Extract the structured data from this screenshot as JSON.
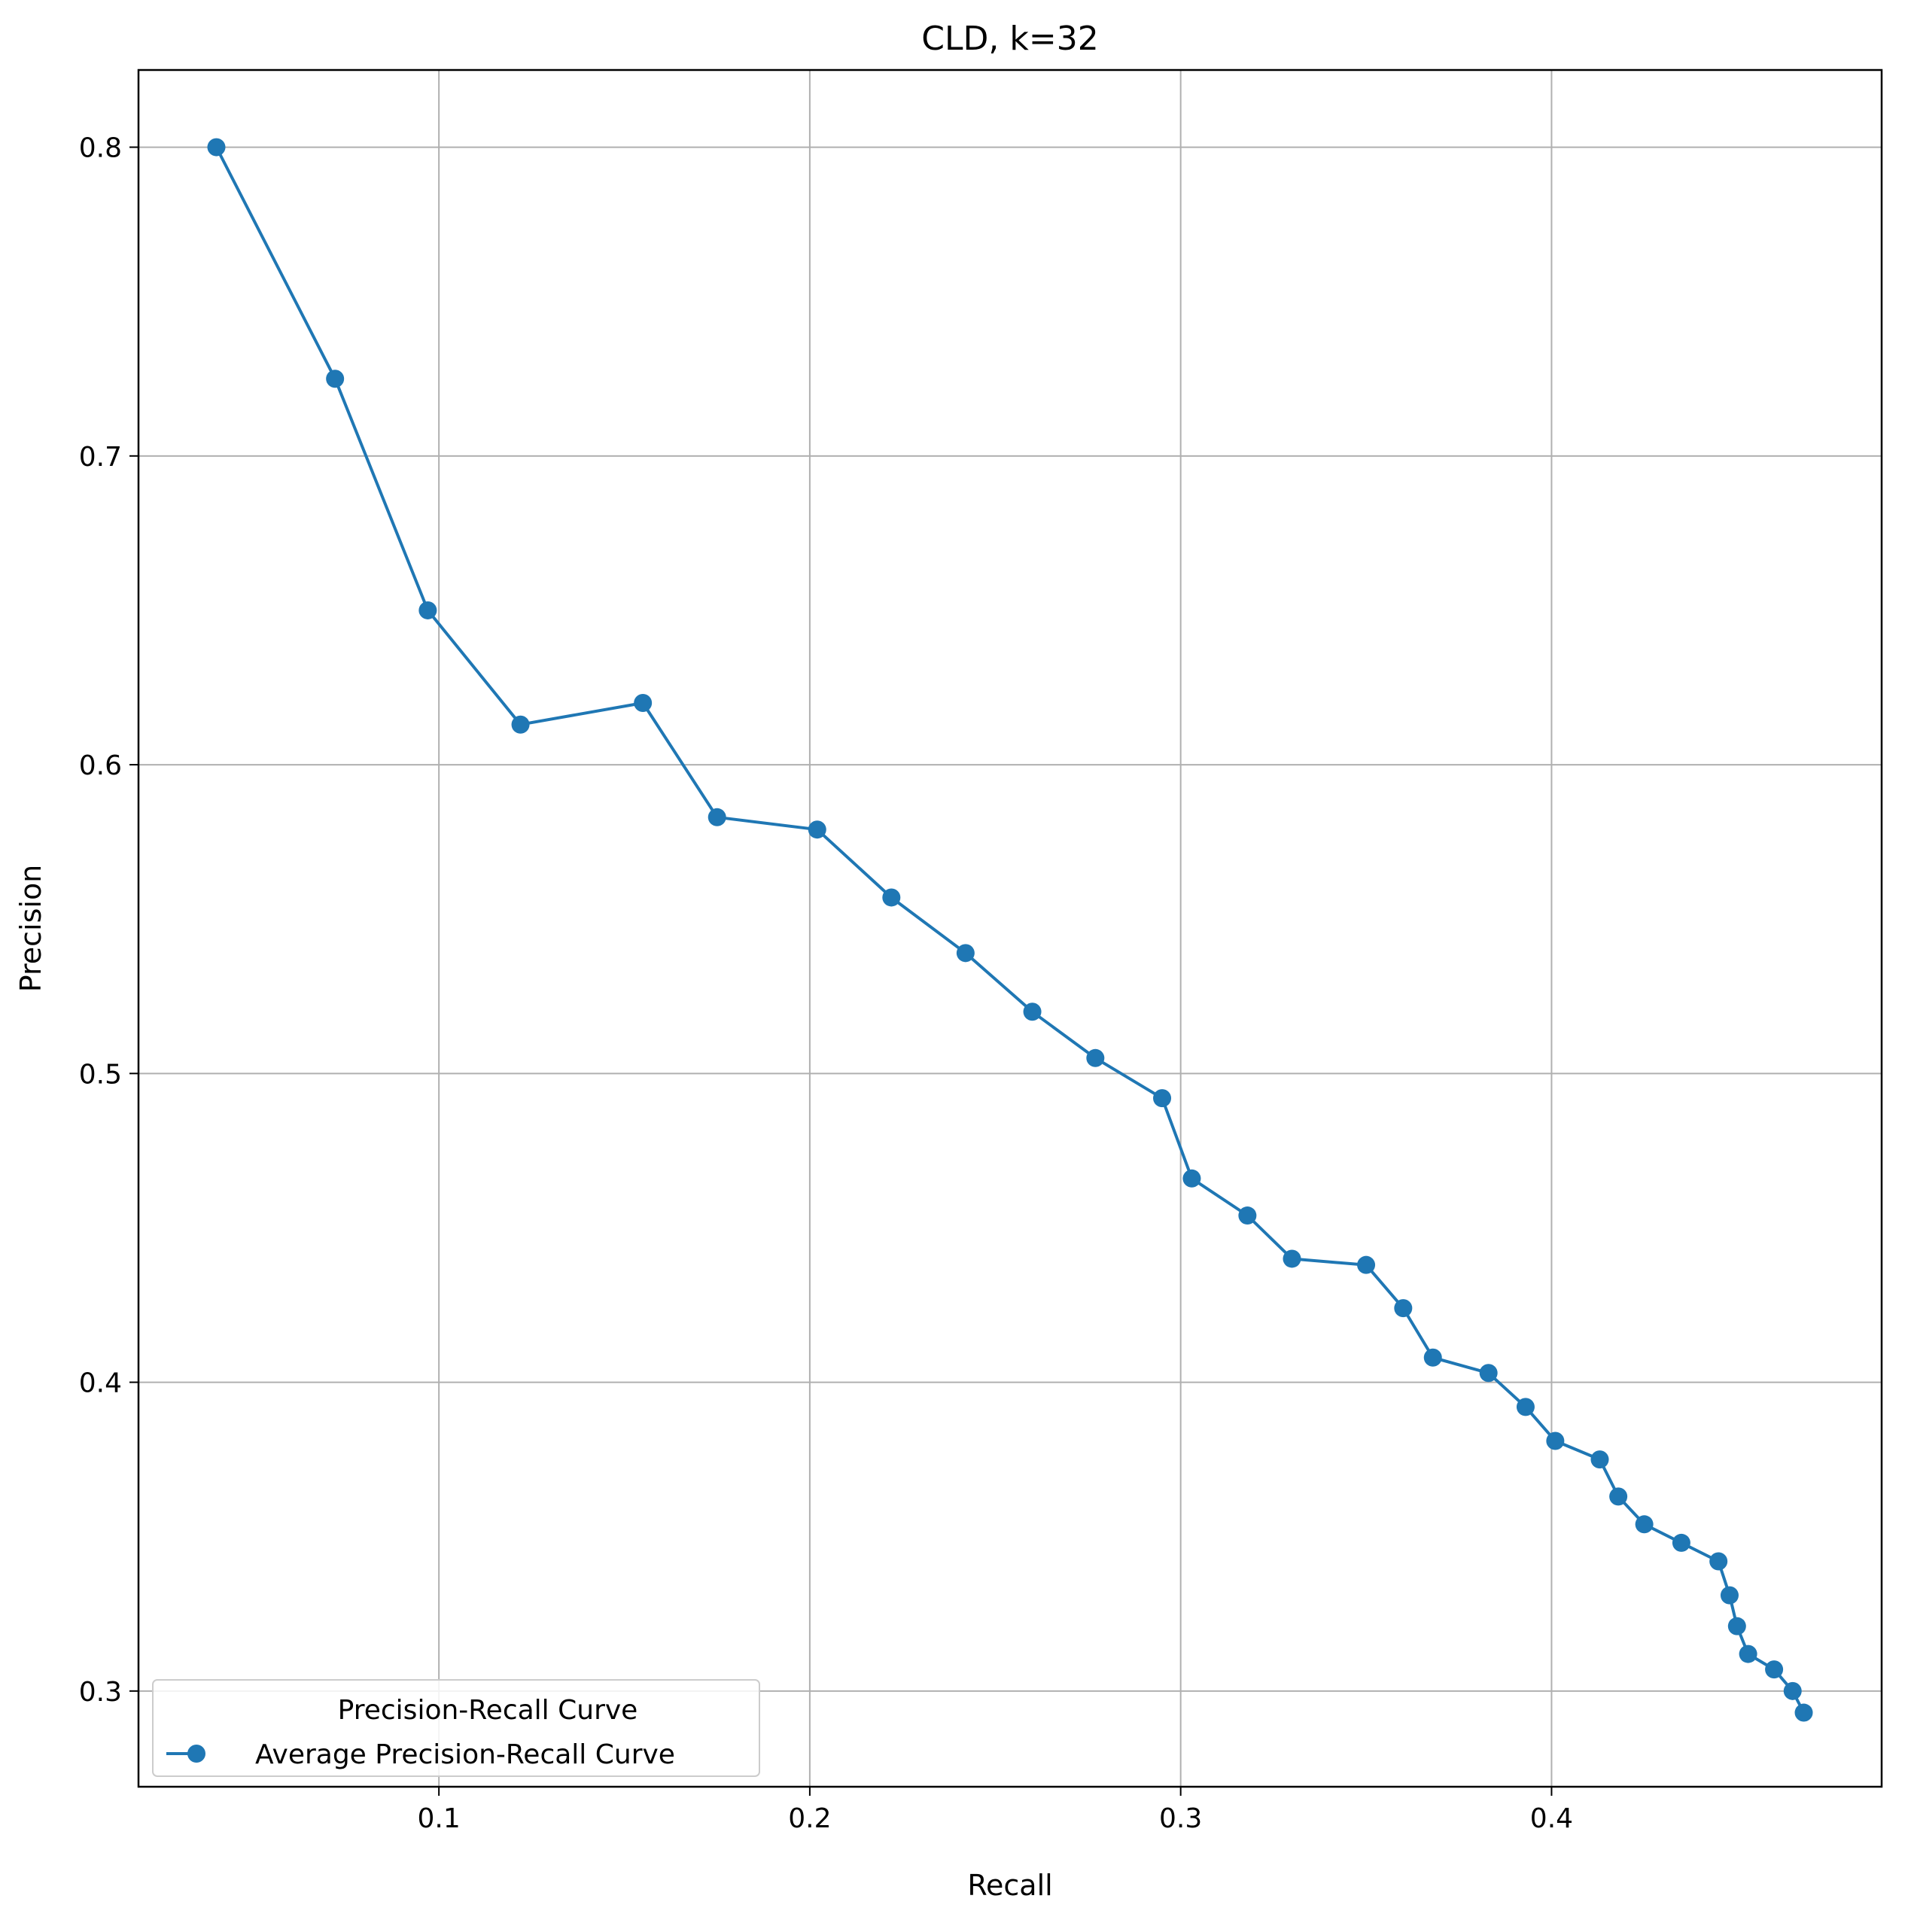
{
  "chart_data": {
    "type": "line",
    "title": "CLD, k=32",
    "xlabel": "Recall",
    "ylabel": "Precision",
    "xlim": [
      0.019,
      0.489
    ],
    "ylim": [
      0.269,
      0.825
    ],
    "xticks": [
      0.1,
      0.2,
      0.3,
      0.4
    ],
    "xtick_labels": [
      "0.1",
      "0.2",
      "0.3",
      "0.4"
    ],
    "yticks": [
      0.3,
      0.4,
      0.5,
      0.6,
      0.7,
      0.8
    ],
    "ytick_labels": [
      "0.3",
      "0.4",
      "0.5",
      "0.6",
      "0.7",
      "0.8"
    ],
    "grid": true,
    "legend": {
      "title": "Precision-Recall Curve",
      "placement": "lower-left"
    },
    "series": [
      {
        "name": "Average  Precision-Recall Curve",
        "color": "#1f77b4",
        "marker": "circle",
        "x": [
          0.04,
          0.072,
          0.097,
          0.122,
          0.155,
          0.175,
          0.202,
          0.222,
          0.242,
          0.26,
          0.277,
          0.295,
          0.303,
          0.318,
          0.33,
          0.35,
          0.36,
          0.368,
          0.383,
          0.393,
          0.401,
          0.413,
          0.418,
          0.425,
          0.435,
          0.445,
          0.448,
          0.45,
          0.453,
          0.46,
          0.465,
          0.468
        ],
        "y": [
          0.8,
          0.725,
          0.65,
          0.613,
          0.62,
          0.583,
          0.579,
          0.557,
          0.539,
          0.52,
          0.505,
          0.492,
          0.466,
          0.454,
          0.44,
          0.438,
          0.424,
          0.408,
          0.403,
          0.392,
          0.381,
          0.375,
          0.363,
          0.354,
          0.348,
          0.342,
          0.331,
          0.321,
          0.312,
          0.307,
          0.3,
          0.293
        ]
      }
    ]
  }
}
